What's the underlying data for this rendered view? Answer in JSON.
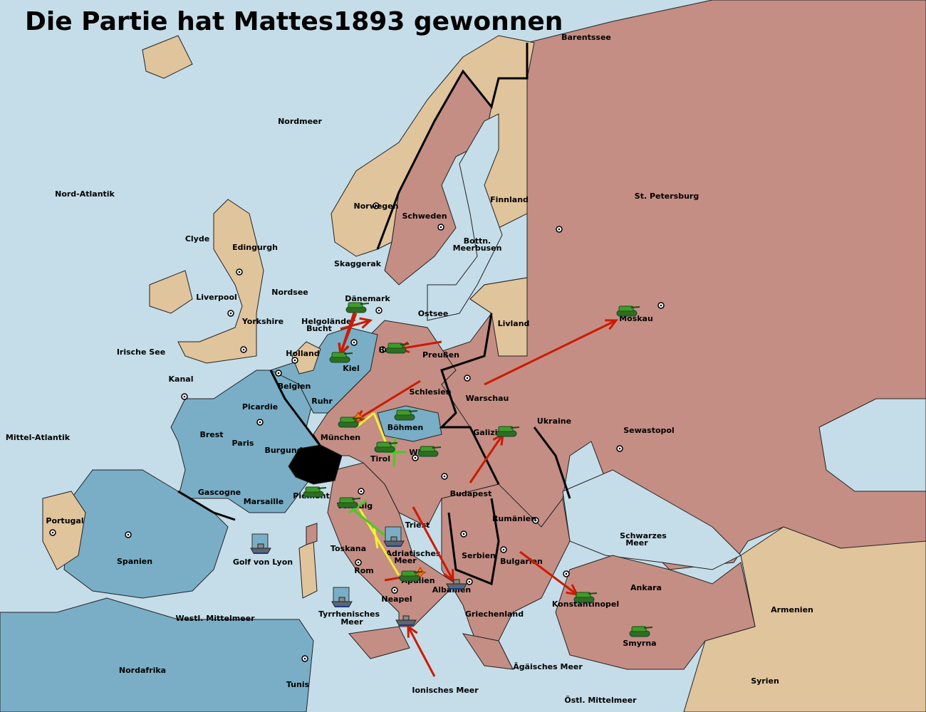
{
  "title": "Die Partie hat Mattes1893 gewonnen",
  "colors": {
    "sea": "#c5dde8",
    "blue_power": "#79aec6",
    "pink_power": "#c48e84",
    "neutral_land": "#e0c49c",
    "impassable": "#000000",
    "move_arrow": "#cc1a00",
    "support_yellow": "#f5f030",
    "support_green": "#44cc22",
    "tank": "#3f9a2c",
    "fleet": "#5d6670"
  },
  "territories": [
    {
      "name": "Barentssee"
    },
    {
      "name": "Nordmeer"
    },
    {
      "name": "Nord-Atlantik"
    },
    {
      "name": "Norwegen"
    },
    {
      "name": "Schweden"
    },
    {
      "name": "Finnland"
    },
    {
      "name": "St. Petersburg"
    },
    {
      "name": "Clyde"
    },
    {
      "name": "Edingurgh"
    },
    {
      "name": "Bottn."
    },
    {
      "name": "Meerbusen"
    },
    {
      "name": "Skaggerak"
    },
    {
      "name": "Nordsee"
    },
    {
      "name": "Liverpool"
    },
    {
      "name": "Dänemark"
    },
    {
      "name": "Helgoländer"
    },
    {
      "name": "Bucht"
    },
    {
      "name": "Yorkshire"
    },
    {
      "name": "Ostsee"
    },
    {
      "name": "Livland"
    },
    {
      "name": "Moskau"
    },
    {
      "name": "Irische See"
    },
    {
      "name": "Holland"
    },
    {
      "name": "Berlin"
    },
    {
      "name": "Preußen"
    },
    {
      "name": "Kiel"
    },
    {
      "name": "Kanal"
    },
    {
      "name": "Belgien"
    },
    {
      "name": "Schlesien"
    },
    {
      "name": "Warschau"
    },
    {
      "name": "Ruhr"
    },
    {
      "name": "Picardie"
    },
    {
      "name": "Ukraine"
    },
    {
      "name": "Böhmen"
    },
    {
      "name": "Sewastopol"
    },
    {
      "name": "Galizien"
    },
    {
      "name": "Mittel-Atlantik"
    },
    {
      "name": "Brest"
    },
    {
      "name": "München"
    },
    {
      "name": "Paris"
    },
    {
      "name": "Burgund"
    },
    {
      "name": "Wien"
    },
    {
      "name": "Tirol"
    },
    {
      "name": "Gascogne"
    },
    {
      "name": "Budapest"
    },
    {
      "name": "Piemont"
    },
    {
      "name": "Marsaille"
    },
    {
      "name": "Venedig"
    },
    {
      "name": "Portugal"
    },
    {
      "name": "Rumänien"
    },
    {
      "name": "Triest"
    },
    {
      "name": "Spanien"
    },
    {
      "name": "Schwarzes"
    },
    {
      "name": "Meer"
    },
    {
      "name": "Toskana"
    },
    {
      "name": "Adriatisches"
    },
    {
      "name": "Meer"
    },
    {
      "name": "Golf von Lyon"
    },
    {
      "name": "Serbien"
    },
    {
      "name": "Bulgarien"
    },
    {
      "name": "Rom"
    },
    {
      "name": "Apulien"
    },
    {
      "name": "Ankara"
    },
    {
      "name": "Albanien"
    },
    {
      "name": "Neapel"
    },
    {
      "name": "Konstantinopel"
    },
    {
      "name": "Armenien"
    },
    {
      "name": "Griechenland"
    },
    {
      "name": "Westl. Mittelmeer"
    },
    {
      "name": "Tyrrhenisches"
    },
    {
      "name": "Meer"
    },
    {
      "name": "Smyrna"
    },
    {
      "name": "Nordafrika"
    },
    {
      "name": "Ägäisches Meer"
    },
    {
      "name": "Tunis"
    },
    {
      "name": "Syrien"
    },
    {
      "name": "Ionisches Meer"
    },
    {
      "name": "Östl. Mittelmeer"
    }
  ],
  "units": [
    {
      "type": "army",
      "at": "Dänemark"
    },
    {
      "type": "army",
      "at": "Kiel"
    },
    {
      "type": "army",
      "at": "Berlin"
    },
    {
      "type": "army",
      "at": "Böhmen"
    },
    {
      "type": "army",
      "at": "München"
    },
    {
      "type": "army",
      "at": "Tirol"
    },
    {
      "type": "army",
      "at": "Wien"
    },
    {
      "type": "army",
      "at": "Galizien"
    },
    {
      "type": "army",
      "at": "Moskau"
    },
    {
      "type": "army",
      "at": "Piemont"
    },
    {
      "type": "army",
      "at": "Venedig"
    },
    {
      "type": "army",
      "at": "Apulien"
    },
    {
      "type": "army",
      "at": "Konstantinopel"
    },
    {
      "type": "army",
      "at": "Smyrna"
    },
    {
      "type": "fleet",
      "at": "Adriatisches Meer"
    },
    {
      "type": "fleet",
      "at": "Albanien"
    },
    {
      "type": "fleet",
      "at": "Ionisches Meer"
    },
    {
      "type": "fleet",
      "at": "Golf von Lyon"
    },
    {
      "type": "fleet",
      "at": "Tyrrhenisches Meer"
    }
  ]
}
